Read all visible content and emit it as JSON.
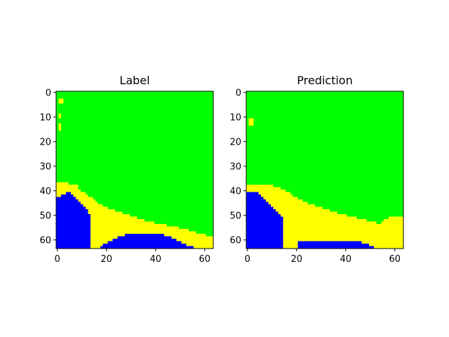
{
  "colors": {
    "background": "#ffffff",
    "class_0": "#0000ff",
    "class_1": "#ffff00",
    "class_2": "#00ff00",
    "axis": "#000000"
  },
  "chart_data": [
    {
      "type": "heatmap",
      "title": "Label",
      "grid_size": [
        64,
        64
      ],
      "xlim": [
        -0.5,
        63.5
      ],
      "ylim": [
        63.5,
        -0.5
      ],
      "xticks": [
        0,
        20,
        40,
        60
      ],
      "yticks": [
        0,
        10,
        20,
        30,
        40,
        50,
        60
      ],
      "classes": [
        "blue",
        "yellow",
        "green"
      ],
      "encoding": "each string is one row of 64 cells: B=blue, Y=yellow, G=green",
      "rows": [
        "GGGGGGGGGGGGGGGGGGGGGGGGGGGGGGGGGGGGGGGGGGGGGGGGGGGGGGGGGGGGGGGG",
        "GGGGGGGGGGGGGGGGGGGGGGGGGGGGGGGGGGGGGGGGGGGGGGGGGGGGGGGGGGGGGGGG",
        "GGGGGGGGGGGGGGGGGGGGGGGGGGGGGGGGGGGGGGGGGGGGGGGGGGGGGGGGGGGGGGGG",
        "GYYGGGGGGGGGGGGGGGGGGGGGGGGGGGGGGGGGGGGGGGGGGGGGGGGGGGGGGGGGGGGG",
        "GYYGGGGGGGGGGGGGGGGGGGGGGGGGGGGGGGGGGGGGGGGGGGGGGGGGGGGGGGGGGGGG",
        "GGGGGGGGGGGGGGGGGGGGGGGGGGGGGGGGGGGGGGGGGGGGGGGGGGGGGGGGGGGGGGGG",
        "GGGGGGGGGGGGGGGGGGGGGGGGGGGGGGGGGGGGGGGGGGGGGGGGGGGGGGGGGGGGGGGG",
        "GGGGGGGGGGGGGGGGGGGGGGGGGGGGGGGGGGGGGGGGGGGGGGGGGGGGGGGGGGGGGGGG",
        "GGGGGGGGGGGGGGGGGGGGGGGGGGGGGGGGGGGGGGGGGGGGGGGGGGGGGGGGGGGGGGGG",
        "GYGGGGGGGGGGGGGGGGGGGGGGGGGGGGGGGGGGGGGGGGGGGGGGGGGGGGGGGGGGGGGG",
        "GYGGGGGGGGGGGGGGGGGGGGGGGGGGGGGGGGGGGGGGGGGGGGGGGGGGGGGGGGGGGGGG",
        "GGGGGGGGGGGGGGGGGGGGGGGGGGGGGGGGGGGGGGGGGGGGGGGGGGGGGGGGGGGGGGGG",
        "GGGGGGGGGGGGGGGGGGGGGGGGGGGGGGGGGGGGGGGGGGGGGGGGGGGGGGGGGGGGGGGG",
        "GYGGGGGGGGGGGGGGGGGGGGGGGGGGGGGGGGGGGGGGGGGGGGGGGGGGGGGGGGGGGGGG",
        "GYGGGGGGGGGGGGGGGGGGGGGGGGGGGGGGGGGGGGGGGGGGGGGGGGGGGGGGGGGGGGGG",
        "GYGGGGGGGGGGGGGGGGGGGGGGGGGGGGGGGGGGGGGGGGGGGGGGGGGGGGGGGGGGGGGG",
        "GGGGGGGGGGGGGGGGGGGGGGGGGGGGGGGGGGGGGGGGGGGGGGGGGGGGGGGGGGGGGGGG",
        "GGGGGGGGGGGGGGGGGGGGGGGGGGGGGGGGGGGGGGGGGGGGGGGGGGGGGGGGGGGGGGGG",
        "GGGGGGGGGGGGGGGGGGGGGGGGGGGGGGGGGGGGGGGGGGGGGGGGGGGGGGGGGGGGGGGG",
        "GGGGGGGGGGGGGGGGGGGGGGGGGGGGGGGGGGGGGGGGGGGGGGGGGGGGGGGGGGGGGGGG",
        "GGGGGGGGGGGGGGGGGGGGGGGGGGGGGGGGGGGGGGGGGGGGGGGGGGGGGGGGGGGGGGGG",
        "GGGGGGGGGGGGGGGGGGGGGGGGGGGGGGGGGGGGGGGGGGGGGGGGGGGGGGGGGGGGGGGG",
        "GGGGGGGGGGGGGGGGGGGGGGGGGGGGGGGGGGGGGGGGGGGGGGGGGGGGGGGGGGGGGGGG",
        "GGGGGGGGGGGGGGGGGGGGGGGGGGGGGGGGGGGGGGGGGGGGGGGGGGGGGGGGGGGGGGGG",
        "GGGGGGGGGGGGGGGGGGGGGGGGGGGGGGGGGGGGGGGGGGGGGGGGGGGGGGGGGGGGGGGG",
        "GGGGGGGGGGGGGGGGGGGGGGGGGGGGGGGGGGGGGGGGGGGGGGGGGGGGGGGGGGGGGGGG",
        "GGGGGGGGGGGGGGGGGGGGGGGGGGGGGGGGGGGGGGGGGGGGGGGGGGGGGGGGGGGGGGGG",
        "GGGGGGGGGGGGGGGGGGGGGGGGGGGGGGGGGGGGGGGGGGGGGGGGGGGGGGGGGGGGGGGG",
        "GGGGGGGGGGGGGGGGGGGGGGGGGGGGGGGGGGGGGGGGGGGGGGGGGGGGGGGGGGGGGGGG",
        "GGGGGGGGGGGGGGGGGGGGGGGGGGGGGGGGGGGGGGGGGGGGGGGGGGGGGGGGGGGGGGGG",
        "GGGGGGGGGGGGGGGGGGGGGGGGGGGGGGGGGGGGGGGGGGGGGGGGGGGGGGGGGGGGGGGG",
        "GGGGGGGGGGGGGGGGGGGGGGGGGGGGGGGGGGGGGGGGGGGGGGGGGGGGGGGGGGGGGGGG",
        "GGGGGGGGGGGGGGGGGGGGGGGGGGGGGGGGGGGGGGGGGGGGGGGGGGGGGGGGGGGGGGGG",
        "GGGGGGGGGGGGGGGGGGGGGGGGGGGGGGGGGGGGGGGGGGGGGGGGGGGGGGGGGGGGGGGG",
        "GGGGGGGGGGGGGGGGGGGGGGGGGGGGGGGGGGGGGGGGGGGGGGGGGGGGGGGGGGGGGGGG",
        "GGGGGGGGGGGGGGGGGGGGGGGGGGGGGGGGGGGGGGGGGGGGGGGGGGGGGGGGGGGGGGGG",
        "GGGGGGGGGGGGGGGGGGGGGGGGGGGGGGGGGGGGGGGGGGGGGGGGGGGGGGGGGGGGGGGG",
        "YYYYYGGGGGGGGGGGGGGGGGGGGGGGGGGGGGGGGGGGGGGGGGGGGGGGGGGGGGGGGGGG",
        "YYYYYYYYYGGGGGGGGGGGGGGGGGGGGGGGGGGGGGGGGGGGGGGGGGGGGGGGGGGGGGGG",
        "YYYYYYYYYGGGGGGGGGGGGGGGGGGGGGGGGGGGGGGGGGGGGGGGGGGGGGGGGGGGGGGG",
        "YYYYYYYYYYGGGGGGGGGGGGGGGGGGGGGGGGGGGGGGGGGGGGGGGGGGGGGGGGGGGGGG",
        "YYYYBBYYYYYYGGGGGGGGGGGGGGGGGGGGGGGGGGGGGGGGGGGGGGGGGGGGGGGGGGGG",
        "YYBBBBBYYYYYYGGGGGGGGGGGGGGGGGGGGGGGGGGGGGGGGGGGGGGGGGGGGGGGGGGG",
        "BBBBBBBBYYYYYYYGGGGGGGGGGGGGGGGGGGGGGGGGGGGGGGGGGGGGGGGGGGGGGGGG",
        "BBBBBBBBBYYYYYYYGGGGGGGGGGGGGGGGGGGGGGGGGGGGGGGGGGGGGGGGGGGGGGGG",
        "BBBBBBBBBBYYYYYYYGGGGGGGGGGGGGGGGGGGGGGGGGGGGGGGGGGGGGGGGGGGGGGG",
        "BBBBBBBBBBBYYYYYYYYGGGGGGGGGGGGGGGGGGGGGGGGGGGGGGGGGGGGGGGGGGGGG",
        "BBBBBBBBBBBBYYYYYYYYYGGGGGGGGGGGGGGGGGGGGGGGGGGGGGGGGGGGGGGGGGGG",
        "BBBBBBBBBBBBBYYYYYYYYYYYGGGGGGGGGGGGGGGGGGGGGGGGGGGGGGGGGGGGGGGG",
        "BBBBBBBBBBBBBYYYYYYYYYYYYYYGGGGGGGGGGGGGGGGGGGGGGGGGGGGGGGGGGGGG",
        "BBBBBBBBBBBBBBYYYYYYYYYYYYYYYYGGGGGGGGGGGGGGGGGGGGGGGGGGGGGGGGGG",
        "BBBBBBBBBBBBBBYYYYYYYYYYYYYYYYYYYGGGGGGGGGGGGGGGGGGGGGGGGGGGGGGG",
        "BBBBBBBBBBBBBBYYYYYYYYYYYYYYYYYYYYYYGGGGGGGGGGGGGGGGGGGGGGGGGGGG",
        "BBBBBBBBBBBBBBYYYYYYYYYYYYYYYYYYYYYYYYYYGGGGGGGGGGGGGGGGGGGGGGGG",
        "BBBBBBBBBBBBBBYYYYYYYYYYYYYYYYYYYYYYYYYYYYYYYGGGGGGGGGGGGGGGGGGG",
        "BBBBBBBBBBBBBBYYYYYYYYYYYYYYYYYYYYYYYYYYYYYYYYYYYYGGGGGGGGGGGGGG",
        "BBBBBBBBBBBBBBYYYYYYYYYYYYYYYYYYYYYYYYYYYYYYYYYYYYYYYYGGGGGGGGGG",
        "BBBBBBBBBBBBBBYYYYYYYYYYYYYYYYYYYYYYYYYYYYYYYYYYYYYYYYYYYGGGGGGG",
        "BBBBBBBBBBBBBBYYYYYYYYYYYYYYBBBBBBBBBBBBBBBBYYYYYYYYYYYYYYYYYGGG",
        "BBBBBBBBBBBBBBYYYYYYYYYYYBBBBBBBBBBBBBBBBBBBBBBYYYYYYYYYYYYYYYYY",
        "BBBBBBBBBBBBBBYYYYYYYYYBBBBBBBBBBBBBBBBBBBBBBBBBBYYYYYYYYYYYYYYY",
        "BBBBBBBBBBBBBBYYYYYYYBBBBBBBBBBBBBBBBBBBBBBBBBBBBBBYYYYYYYYYYYYY",
        "BBBBBBBBBBBBBBYYYYYBBBBBBBBBBBBBBBBBBBBBBBBBBBBBBBBBBYYYYYYYYYYY",
        "BBBBBBBBBBBBBBYYYYBBBBBBBBBBBBBBBBBBBBBBBBBBBBBBBBBBBBBBYYYYYYYY"
      ]
    },
    {
      "type": "heatmap",
      "title": "Prediction",
      "grid_size": [
        64,
        64
      ],
      "xlim": [
        -0.5,
        63.5
      ],
      "ylim": [
        63.5,
        -0.5
      ],
      "xticks": [
        0,
        20,
        40,
        60
      ],
      "yticks": [
        0,
        10,
        20,
        30,
        40,
        50,
        60
      ],
      "classes": [
        "blue",
        "yellow",
        "green"
      ],
      "encoding": "each string is one row of 64 cells: B=blue, Y=yellow, G=green",
      "rows": [
        "GGGGGGGGGGGGGGGGGGGGGGGGGGGGGGGGGGGGGGGGGGGGGGGGGGGGGGGGGGGGGGGG",
        "GGGGGGGGGGGGGGGGGGGGGGGGGGGGGGGGGGGGGGGGGGGGGGGGGGGGGGGGGGGGGGGG",
        "GGGGGGGGGGGGGGGGGGGGGGGGGGGGGGGGGGGGGGGGGGGGGGGGGGGGGGGGGGGGGGGG",
        "GGGGGGGGGGGGGGGGGGGGGGGGGGGGGGGGGGGGGGGGGGGGGGGGGGGGGGGGGGGGGGGG",
        "GGGGGGGGGGGGGGGGGGGGGGGGGGGGGGGGGGGGGGGGGGGGGGGGGGGGGGGGGGGGGGGG",
        "GGGGGGGGGGGGGGGGGGGGGGGGGGGGGGGGGGGGGGGGGGGGGGGGGGGGGGGGGGGGGGGG",
        "GGGGGGGGGGGGGGGGGGGGGGGGGGGGGGGGGGGGGGGGGGGGGGGGGGGGGGGGGGGGGGGG",
        "GGGGGGGGGGGGGGGGGGGGGGGGGGGGGGGGGGGGGGGGGGGGGGGGGGGGGGGGGGGGGGGG",
        "GGGGGGGGGGGGGGGGGGGGGGGGGGGGGGGGGGGGGGGGGGGGGGGGGGGGGGGGGGGGGGGG",
        "GGGGGGGGGGGGGGGGGGGGGGGGGGGGGGGGGGGGGGGGGGGGGGGGGGGGGGGGGGGGGGGG",
        "GGGGGGGGGGGGGGGGGGGGGGGGGGGGGGGGGGGGGGGGGGGGGGGGGGGGGGGGGGGGGGGG",
        "GYYGGGGGGGGGGGGGGGGGGGGGGGGGGGGGGGGGGGGGGGGGGGGGGGGGGGGGGGGGGGGG",
        "GYYGGGGGGGGGGGGGGGGGGGGGGGGGGGGGGGGGGGGGGGGGGGGGGGGGGGGGGGGGGGGG",
        "GYYGGGGGGGGGGGGGGGGGGGGGGGGGGGGGGGGGGGGGGGGGGGGGGGGGGGGGGGGGGGGG",
        "GGGGGGGGGGGGGGGGGGGGGGGGGGGGGGGGGGGGGGGGGGGGGGGGGGGGGGGGGGGGGGGG",
        "GGGGGGGGGGGGGGGGGGGGGGGGGGGGGGGGGGGGGGGGGGGGGGGGGGGGGGGGGGGGGGGG",
        "GGGGGGGGGGGGGGGGGGGGGGGGGGGGGGGGGGGGGGGGGGGGGGGGGGGGGGGGGGGGGGGG",
        "GGGGGGGGGGGGGGGGGGGGGGGGGGGGGGGGGGGGGGGGGGGGGGGGGGGGGGGGGGGGGGGG",
        "GGGGGGGGGGGGGGGGGGGGGGGGGGGGGGGGGGGGGGGGGGGGGGGGGGGGGGGGGGGGGGGG",
        "GGGGGGGGGGGGGGGGGGGGGGGGGGGGGGGGGGGGGGGGGGGGGGGGGGGGGGGGGGGGGGGG",
        "GGGGGGGGGGGGGGGGGGGGGGGGGGGGGGGGGGGGGGGGGGGGGGGGGGGGGGGGGGGGGGGG",
        "GGGGGGGGGGGGGGGGGGGGGGGGGGGGGGGGGGGGGGGGGGGGGGGGGGGGGGGGGGGGGGGG",
        "GGGGGGGGGGGGGGGGGGGGGGGGGGGGGGGGGGGGGGGGGGGGGGGGGGGGGGGGGGGGGGGG",
        "GGGGGGGGGGGGGGGGGGGGGGGGGGGGGGGGGGGGGGGGGGGGGGGGGGGGGGGGGGGGGGGG",
        "GGGGGGGGGGGGGGGGGGGGGGGGGGGGGGGGGGGGGGGGGGGGGGGGGGGGGGGGGGGGGGGG",
        "GGGGGGGGGGGGGGGGGGGGGGGGGGGGGGGGGGGGGGGGGGGGGGGGGGGGGGGGGGGGGGGG",
        "GGGGGGGGGGGGGGGGGGGGGGGGGGGGGGGGGGGGGGGGGGGGGGGGGGGGGGGGGGGGGGGG",
        "GGGGGGGGGGGGGGGGGGGGGGGGGGGGGGGGGGGGGGGGGGGGGGGGGGGGGGGGGGGGGGGG",
        "GGGGGGGGGGGGGGGGGGGGGGGGGGGGGGGGGGGGGGGGGGGGGGGGGGGGGGGGGGGGGGGG",
        "GGGGGGGGGGGGGGGGGGGGGGGGGGGGGGGGGGGGGGGGGGGGGGGGGGGGGGGGGGGGGGGG",
        "GGGGGGGGGGGGGGGGGGGGGGGGGGGGGGGGGGGGGGGGGGGGGGGGGGGGGGGGGGGGGGGG",
        "GGGGGGGGGGGGGGGGGGGGGGGGGGGGGGGGGGGGGGGGGGGGGGGGGGGGGGGGGGGGGGGG",
        "GGGGGGGGGGGGGGGGGGGGGGGGGGGGGGGGGGGGGGGGGGGGGGGGGGGGGGGGGGGGGGGG",
        "GGGGGGGGGGGGGGGGGGGGGGGGGGGGGGGGGGGGGGGGGGGGGGGGGGGGGGGGGGGGGGGG",
        "GGGGGGGGGGGGGGGGGGGGGGGGGGGGGGGGGGGGGGGGGGGGGGGGGGGGGGGGGGGGGGGG",
        "GGGGGGGGGGGGGGGGGGGGGGGGGGGGGGGGGGGGGGGGGGGGGGGGGGGGGGGGGGGGGGGG",
        "GGGGGGGGGGGGGGGGGGGGGGGGGGGGGGGGGGGGGGGGGGGGGGGGGGGGGGGGGGGGGGGG",
        "GGGGGGGGGGGGGGGGGGGGGGGGGGGGGGGGGGGGGGGGGGGGGGGGGGGGGGGGGGGGGGGG",
        "YYYYYYYYYYYGGGGGGGGGGGGGGGGGGGGGGGGGGGGGGGGGGGGGGGGGGGGGGGGGGGGG",
        "YYYYYYYYYYYYYYGGGGGGGGGGGGGGGGGGGGGGGGGGGGGGGGGGGGGGGGGGGGGGGGGG",
        "YYYYYYYYYYYYYYYYGGGGGGGGGGGGGGGGGGGGGGGGGGGGGGGGGGGGGGGGGGGGGGGG",
        "BBBBBYYYYYYYYYYYYYGGGGGGGGGGGGGGGGGGGGGGGGGGGGGGGGGGGGGGGGGGGGGG",
        "BBBBBBYYYYYYYYYYYYYGGGGGGGGGGGGGGGGGGGGGGGGGGGGGGGGGGGGGGGGGGGGG",
        "BBBBBBBYYYYYYYYYYYYYYGGGGGGGGGGGGGGGGGGGGGGGGGGGGGGGGGGGGGGGGGGG",
        "BBBBBBBBYYYYYYYYYYYYYYYGGGGGGGGGGGGGGGGGGGGGGGGGGGGGGGGGGGGGGGGG",
        "BBBBBBBBBYYYYYYYYYYYYYYYYGGGGGGGGGGGGGGGGGGGGGGGGGGGGGGGGGGGGGGG",
        "BBBBBBBBBBYYYYYYYYYYYYYYYYYYGGGGGGGGGGGGGGGGGGGGGGGGGGGGGGGGGGGG",
        "BBBBBBBBBBBYYYYYYYYYYYYYYYYYYYYGGGGGGGGGGGGGGGGGGGGGGGGGGGGGGGGG",
        "BBBBBBBBBBBBYYYYYYYYYYYYYYYYYYYYYYGGGGGGGGGGGGGGGGGGGGGGGGGGGGGG",
        "BBBBBBBBBBBBBYYYYYYYYYYYYYYYYYYYYYYYYGGGGGGGGGGGGGGGGGGGGGGGGGGG",
        "BBBBBBBBBBBBBBYYYYYYYYYYYYYYYYYYYYYYYYYYYGGGGGGGGGGGGGGGGGGGGGGG",
        "BBBBBBBBBBBBBBBYYYYYYYYYYYYYYYYYYYYYYYYYYYYYYGGGGGGGGGGGGGYYYYYY",
        "BBBBBBBBBBBBBBBYYYYYYYYYYYYYYYYYYYYYYYYYYYYYYYYYYGGGGGGGYYYYYYYY",
        "BBBBBBBBBBBBBBBYYYYYYYYYYYYYYYYYYYYYYYYYYYYYYYYYYYYYYGGYYYYYYYYY",
        "BBBBBBBBBBBBBBBYYYYYYYYYYYYYYYYYYYYYYYYYYYYYYYYYYYYYYYYYYYYYYYYY",
        "BBBBBBBBBBBBBBBYYYYYYYYYYYYYYYYYYYYYYYYYYYYYYYYYYYYYYYYYYYYYYYYY",
        "BBBBBBBBBBBBBBBYYYYYYYYYYYYYYYYYYYYYYYYYYYYYYYYYYYYYYYYYYYYYYYYY",
        "BBBBBBBBBBBBBBBYYYYYYYYYYYYYYYYYYYYYYYYYYYYYYYYYYYYYYYYYYYYYYYYY",
        "BBBBBBBBBBBBBBBYYYYYYYYYYYYYYYYYYYYYYYYYYYYYYYYYYYYYYYYYYYYYYYYY",
        "BBBBBBBBBBBBBBBYYYYYYYYYYYYYYYYYYYYYYYYYYYYYYYYYYYYYYYYYYYYYYYYY",
        "BBBBBBBBBBBBBBBYYYYYYYYYYYYYYYYYYYYYYYYYYYYYYYYYYYYYYYYYYYYYYYYY",
        "BBBBBBBBBBBBBBBYYYYYYBBBBBBBBBBBBBBBBBBBBBBBBBBYYYYYYYYYYYYYYYYY",
        "BBBBBBBBBBBBBBBYYYYYYBBBBBBBBBBBBBBBBBBBBBBBBBBBBBYYYYYYYYYYYYYY",
        "BBBBBBBBBBBBBBBYYYYYYBBBBBBBBBBBBBBBBBBBBBBBBBBBBBBBYYYYYYYYYYYY"
      ]
    }
  ]
}
